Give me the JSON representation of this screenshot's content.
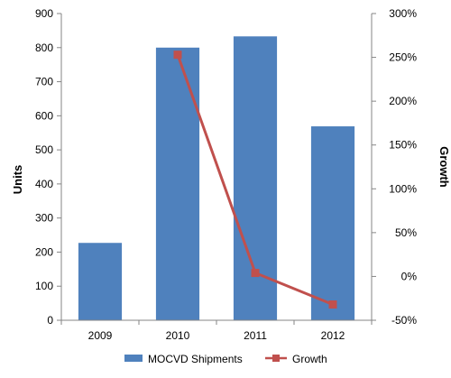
{
  "chart_data": {
    "type": "bar",
    "categories": [
      "2009",
      "2010",
      "2011",
      "2012"
    ],
    "series": [
      {
        "name": "MOCVD Shipments",
        "type": "bar",
        "axis": "left",
        "values": [
          227,
          800,
          833,
          569
        ],
        "color": "#4F81BD"
      },
      {
        "name": "Growth",
        "type": "line",
        "axis": "right",
        "values": [
          null,
          253,
          4,
          -32
        ],
        "color": "#C0504D"
      }
    ],
    "ylabel": "Units",
    "ylim": [
      0,
      900
    ],
    "yticks": [
      "0",
      "100",
      "200",
      "300",
      "400",
      "500",
      "600",
      "700",
      "800",
      "900"
    ],
    "y2label": "Growth",
    "y2lim": [
      -50,
      300
    ],
    "y2ticks": [
      "-50%",
      "0%",
      "50%",
      "100%",
      "150%",
      "200%",
      "250%",
      "300%"
    ],
    "legend_position": "bottom",
    "grid": false
  }
}
